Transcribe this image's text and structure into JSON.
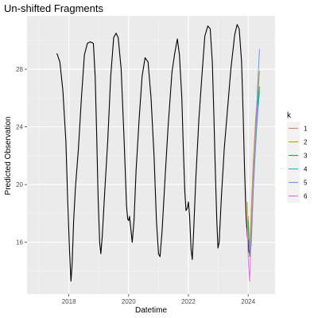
{
  "chart_data": {
    "type": "line",
    "title": "Un-shifted Fragments",
    "xlabel": "Datetime",
    "ylabel": "Predicted Observation",
    "x_ticks": [
      2018,
      2020,
      2022,
      2024
    ],
    "y_ticks": [
      16,
      20,
      24,
      28
    ],
    "xlim": [
      2016.6,
      2024.9
    ],
    "ylim": [
      12.4,
      31.7
    ],
    "grid": true,
    "legend": {
      "title": "k",
      "position": "right",
      "entries": [
        "1",
        "2",
        "3",
        "4",
        "5",
        "6"
      ]
    },
    "main_series": {
      "color": "#000000",
      "points": [
        [
          2017.6,
          29.1
        ],
        [
          2017.7,
          28.5
        ],
        [
          2017.8,
          26.5
        ],
        [
          2017.9,
          23.0
        ],
        [
          2017.96,
          19.0
        ],
        [
          2018.02,
          15.5
        ],
        [
          2018.07,
          13.3
        ],
        [
          2018.11,
          14.5
        ],
        [
          2018.16,
          17.5
        ],
        [
          2018.22,
          19.8
        ],
        [
          2018.32,
          22.5
        ],
        [
          2018.42,
          26.0
        ],
        [
          2018.52,
          29.0
        ],
        [
          2018.62,
          29.8
        ],
        [
          2018.72,
          29.9
        ],
        [
          2018.82,
          29.8
        ],
        [
          2018.88,
          27.5
        ],
        [
          2018.93,
          23.5
        ],
        [
          2018.98,
          19.0
        ],
        [
          2019.03,
          16.0
        ],
        [
          2019.07,
          15.2
        ],
        [
          2019.12,
          16.5
        ],
        [
          2019.2,
          19.5
        ],
        [
          2019.3,
          23.0
        ],
        [
          2019.4,
          27.5
        ],
        [
          2019.5,
          30.2
        ],
        [
          2019.58,
          30.5
        ],
        [
          2019.65,
          30.2
        ],
        [
          2019.75,
          28.0
        ],
        [
          2019.85,
          23.0
        ],
        [
          2019.93,
          18.5
        ],
        [
          2019.97,
          17.6
        ],
        [
          2020.0,
          17.5
        ],
        [
          2020.03,
          17.8
        ],
        [
          2020.07,
          17.0
        ],
        [
          2020.12,
          16.0
        ],
        [
          2020.18,
          17.5
        ],
        [
          2020.25,
          21.0
        ],
        [
          2020.35,
          24.5
        ],
        [
          2020.45,
          27.5
        ],
        [
          2020.55,
          28.8
        ],
        [
          2020.65,
          28.5
        ],
        [
          2020.75,
          26.0
        ],
        [
          2020.85,
          22.0
        ],
        [
          2020.93,
          17.5
        ],
        [
          2021.0,
          15.2
        ],
        [
          2021.05,
          15.0
        ],
        [
          2021.12,
          16.8
        ],
        [
          2021.22,
          20.5
        ],
        [
          2021.32,
          24.0
        ],
        [
          2021.45,
          27.8
        ],
        [
          2021.55,
          29.2
        ],
        [
          2021.63,
          30.1
        ],
        [
          2021.7,
          29.0
        ],
        [
          2021.78,
          26.0
        ],
        [
          2021.83,
          22.5
        ],
        [
          2021.88,
          19.5
        ],
        [
          2021.92,
          18.2
        ],
        [
          2021.97,
          18.4
        ],
        [
          2022.0,
          18.8
        ],
        [
          2022.04,
          17.8
        ],
        [
          2022.09,
          15.5
        ],
        [
          2022.13,
          14.8
        ],
        [
          2022.17,
          16.5
        ],
        [
          2022.25,
          20.5
        ],
        [
          2022.35,
          24.5
        ],
        [
          2022.45,
          27.5
        ],
        [
          2022.55,
          30.3
        ],
        [
          2022.65,
          31.0
        ],
        [
          2022.73,
          30.8
        ],
        [
          2022.8,
          28.5
        ],
        [
          2022.85,
          25.0
        ],
        [
          2022.9,
          21.0
        ],
        [
          2022.95,
          17.5
        ],
        [
          2022.99,
          15.6
        ],
        [
          2023.03,
          16.0
        ],
        [
          2023.1,
          19.0
        ],
        [
          2023.2,
          22.5
        ],
        [
          2023.3,
          25.0
        ],
        [
          2023.42,
          28.0
        ],
        [
          2023.55,
          30.4
        ],
        [
          2023.63,
          31.1
        ],
        [
          2023.7,
          30.8
        ],
        [
          2023.78,
          28.5
        ],
        [
          2023.83,
          25.0
        ],
        [
          2023.88,
          21.0
        ],
        [
          2023.93,
          17.8
        ],
        [
          2023.97,
          16.5
        ],
        [
          2024.0,
          16.0
        ],
        [
          2024.03,
          15.3
        ],
        [
          2024.06,
          15.2
        ],
        [
          2024.09,
          15.6
        ]
      ]
    },
    "series": [
      {
        "name": "1",
        "color": "#F8766D",
        "points": [
          [
            2024.0,
            17.8
          ],
          [
            2024.04,
            15.5
          ],
          [
            2024.08,
            16.0
          ],
          [
            2024.15,
            19.0
          ],
          [
            2024.22,
            22.0
          ],
          [
            2024.3,
            25.0
          ],
          [
            2024.37,
            27.8
          ]
        ]
      },
      {
        "name": "2",
        "color": "#B79F00",
        "points": [
          [
            2023.97,
            18.8
          ],
          [
            2024.01,
            16.5
          ],
          [
            2024.05,
            15.3
          ],
          [
            2024.1,
            18.0
          ],
          [
            2024.17,
            21.5
          ],
          [
            2024.25,
            24.5
          ],
          [
            2024.32,
            26.5
          ],
          [
            2024.38,
            27.9
          ]
        ]
      },
      {
        "name": "3",
        "color": "#00BA38",
        "points": [
          [
            2024.0,
            17.5
          ],
          [
            2024.05,
            15.0
          ],
          [
            2024.1,
            15.8
          ],
          [
            2024.17,
            19.5
          ],
          [
            2024.25,
            23.0
          ],
          [
            2024.33,
            25.8
          ],
          [
            2024.38,
            26.8
          ]
        ]
      },
      {
        "name": "4",
        "color": "#00BFC4",
        "points": [
          [
            2024.02,
            16.2
          ],
          [
            2024.06,
            15.4
          ],
          [
            2024.12,
            17.5
          ],
          [
            2024.2,
            21.0
          ],
          [
            2024.28,
            23.8
          ],
          [
            2024.34,
            25.5
          ],
          [
            2024.38,
            26.5
          ]
        ]
      },
      {
        "name": "5",
        "color": "#619CFF",
        "points": [
          [
            2024.03,
            16.0
          ],
          [
            2024.07,
            15.4
          ],
          [
            2024.13,
            18.0
          ],
          [
            2024.2,
            21.5
          ],
          [
            2024.27,
            24.5
          ],
          [
            2024.32,
            27.0
          ],
          [
            2024.38,
            29.4
          ]
        ]
      },
      {
        "name": "6",
        "color": "#F564E3",
        "points": [
          [
            2023.97,
            17.0
          ],
          [
            2024.01,
            14.5
          ],
          [
            2024.05,
            13.3
          ],
          [
            2024.1,
            16.5
          ],
          [
            2024.17,
            20.5
          ],
          [
            2024.25,
            23.5
          ],
          [
            2024.32,
            25.5
          ]
        ]
      }
    ]
  }
}
